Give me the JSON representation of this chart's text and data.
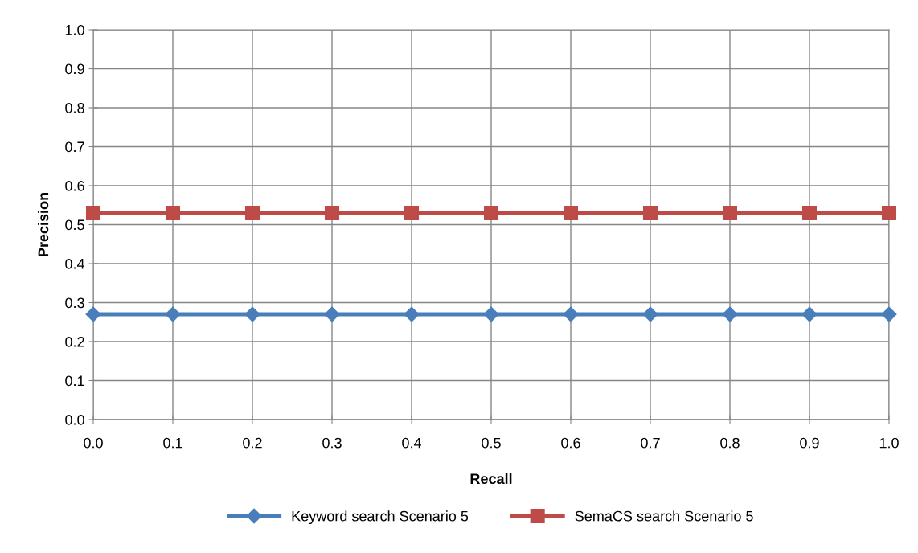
{
  "chart_data": {
    "type": "line",
    "xlabel": "Recall",
    "ylabel": "Precision",
    "x": [
      0,
      0.1,
      0.2,
      0.3,
      0.4,
      0.5,
      0.6,
      0.7,
      0.8,
      0.9,
      1.0
    ],
    "series": [
      {
        "name": "Keyword search Scenario 5",
        "color": "#4a7ebb",
        "marker": "diamond",
        "values": [
          0.27,
          0.27,
          0.27,
          0.27,
          0.27,
          0.27,
          0.27,
          0.27,
          0.27,
          0.27,
          0.27
        ]
      },
      {
        "name": "SemaCS search Scenario 5",
        "color": "#be4b48",
        "marker": "square",
        "values": [
          0.53,
          0.53,
          0.53,
          0.53,
          0.53,
          0.53,
          0.53,
          0.53,
          0.53,
          0.53,
          0.53
        ]
      }
    ],
    "xlim": [
      0,
      1.0
    ],
    "xticks": [
      {
        "value": 0,
        "label": "0.0"
      },
      {
        "value": 0.1,
        "label": "0.1"
      },
      {
        "value": 0.2,
        "label": "0.2"
      },
      {
        "value": 0.3,
        "label": "0.3"
      },
      {
        "value": 0.4,
        "label": "0.4"
      },
      {
        "value": 0.5,
        "label": "0.5"
      },
      {
        "value": 0.6,
        "label": "0.6"
      },
      {
        "value": 0.7,
        "label": "0.7"
      },
      {
        "value": 0.8,
        "label": "0.8"
      },
      {
        "value": 0.9,
        "label": "0.9"
      },
      {
        "value": 1.0,
        "label": "1.0"
      }
    ],
    "ylim": [
      0,
      1.0
    ],
    "yticks": [
      {
        "value": 0,
        "label": "0.0"
      },
      {
        "value": 0.1,
        "label": "0.1"
      },
      {
        "value": 0.2,
        "label": "0.2"
      },
      {
        "value": 0.3,
        "label": "0.3"
      },
      {
        "value": 0.4,
        "label": "0.4"
      },
      {
        "value": 0.5,
        "label": "0.5"
      },
      {
        "value": 0.6,
        "label": "0.6"
      },
      {
        "value": 0.7,
        "label": "0.7"
      },
      {
        "value": 0.8,
        "label": "0.8"
      },
      {
        "value": 0.9,
        "label": "0.9"
      },
      {
        "value": 1.0,
        "label": "1.0"
      }
    ],
    "grid": true,
    "legend": "bottom",
    "line_style": "solid"
  }
}
